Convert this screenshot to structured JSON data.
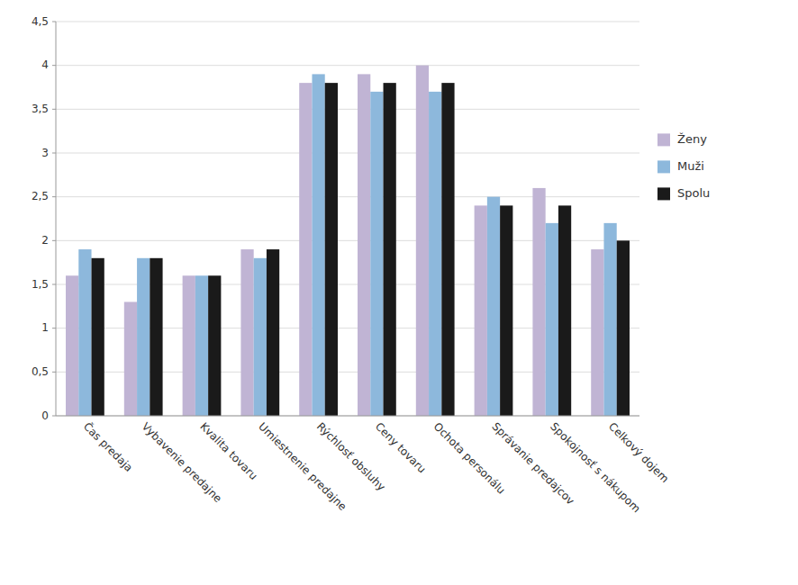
{
  "chart_data": {
    "type": "bar",
    "categories": [
      "Čas predaja",
      "Vybavenie predajne",
      "Kvalita tovaru",
      "Umiestnenie predajne",
      "Rýchlosť obsluhy",
      "Ceny tovaru",
      "Ochota personálu",
      "Správanie predajcov",
      "Spokojnosť s nákupom",
      "Celkový dojem"
    ],
    "series": [
      {
        "name": "Ženy",
        "color": "#c0b4d4",
        "values": [
          1.6,
          1.3,
          1.6,
          1.9,
          3.8,
          3.9,
          4.0,
          2.4,
          2.6,
          1.9
        ]
      },
      {
        "name": "Muži",
        "color": "#8db8dc",
        "values": [
          1.9,
          1.8,
          1.6,
          1.8,
          3.9,
          3.7,
          3.7,
          2.5,
          2.2,
          2.2
        ]
      },
      {
        "name": "Spolu",
        "color": "#1a1a1a",
        "values": [
          1.8,
          1.8,
          1.6,
          1.9,
          3.8,
          3.8,
          3.8,
          2.4,
          2.4,
          2.0
        ]
      }
    ],
    "ylim": [
      0,
      4.5
    ],
    "yticks": [
      0,
      {
        "value": 0.5,
        "label": "0,5"
      },
      1,
      {
        "value": 1.5,
        "label": "1,5"
      },
      2,
      {
        "value": 2.5,
        "label": "2,5"
      },
      3,
      {
        "value": 3.5,
        "label": "3,5"
      },
      4,
      {
        "value": 4.5,
        "label": "4,5"
      }
    ],
    "grid": true,
    "legend": "right"
  }
}
